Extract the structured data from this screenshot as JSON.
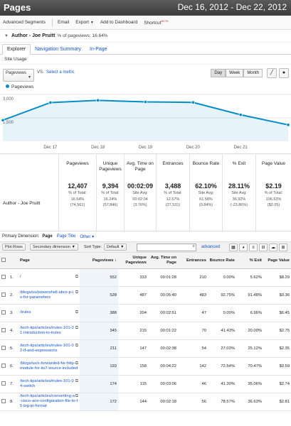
{
  "header": {
    "title": "Pages",
    "date_range": "Dec 16, 2012 - Dec 22, 2012"
  },
  "toolbar": {
    "advanced_segments": "Advanced Segments",
    "email": "Email",
    "export": "Export",
    "add_to_dashboard": "Add to Dashboard",
    "shortcut": "Shortcut",
    "beta": "BETA"
  },
  "segment": {
    "name": "Author - Joe Pruitt",
    "detail": "% of pageviews: 16.64%"
  },
  "tabs": [
    "Explorer",
    "Navigation Summary",
    "In-Page"
  ],
  "subtab": "Site Usage",
  "metric_controls": {
    "metric": "Pageviews",
    "vs": "VS.",
    "select_metric": "Select a metric",
    "day": "Day",
    "week": "Week",
    "month": "Month"
  },
  "chart_data": {
    "type": "line",
    "legend": "Pageviews",
    "y_ticks": [
      "3,000",
      "1,500"
    ],
    "ylim": [
      0,
      3000
    ],
    "categories": [
      "Dec 16",
      "Dec 17",
      "Dec 18",
      "Dec 19",
      "Dec 20",
      "Dec 21",
      "Dec 22"
    ],
    "x_tick_labels": [
      "Dec 17",
      "Dec 18",
      "Dec 19",
      "Dec 20",
      "Dec 21"
    ],
    "series": [
      {
        "name": "Pageviews",
        "values": [
          1350,
          2480,
          2620,
          2520,
          2490,
          1700,
          1050
        ]
      }
    ],
    "color": "#058dc7"
  },
  "summary": {
    "row_label": "Author - Joe Pruitt",
    "columns": [
      {
        "header": "Pageviews",
        "value": "12,407",
        "sub1": "% of Total:",
        "sub2": "16.64%",
        "sub3": "(74,561)"
      },
      {
        "header": "Unique Pageviews",
        "value": "9,394",
        "sub1": "% of Total:",
        "sub2": "16.24%",
        "sub3": "(57,846)"
      },
      {
        "header": "Avg. Time on Page",
        "value": "00:02:09",
        "sub1": "Site Avg:",
        "sub2": "00:02:04",
        "sub3": "(3.76%)"
      },
      {
        "header": "Entrances",
        "value": "3,488",
        "sub1": "% of Total:",
        "sub2": "12.67%",
        "sub3": "(27,531)"
      },
      {
        "header": "Bounce Rate",
        "value": "62.10%",
        "sub1": "Site Avg:",
        "sub2": "61.58%",
        "sub3": "(0.84%)"
      },
      {
        "header": "% Exit",
        "value": "28.11%",
        "sub1": "Site Avg:",
        "sub2": "36.92%",
        "sub3": "(-23.86%)"
      },
      {
        "header": "Page Value",
        "value": "$2.19",
        "sub1": "% of Total:",
        "sub2": "106.63%",
        "sub3": "($2.05)"
      }
    ]
  },
  "primary_dimension": {
    "label": "Primary Dimension:",
    "page": "Page",
    "page_title": "Page Title",
    "other": "Other"
  },
  "controls": {
    "plot_rows": "Plot Rows",
    "secondary_dimension": "Secondary dimension",
    "sort_type": "Sort Type:",
    "default": "Default",
    "advanced": "advanced"
  },
  "table": {
    "headers": [
      "Page",
      "Pageviews",
      "Unique Pageviews",
      "Avg. Time on Page",
      "Entrances",
      "Bounce Rate",
      "% Exit",
      "Page Value"
    ],
    "sort_arrow": "↓",
    "rows": [
      {
        "n": "1.",
        "page": "/",
        "pv": "552",
        "upv": "333",
        "time": "00:01:28",
        "ent": "210",
        "br": "0.00%",
        "exit": "5.62%",
        "val": "$8.29"
      },
      {
        "n": "2.",
        "page": "/blogs/us/powershell-abcs-p-is-for-parameters",
        "pv": "528",
        "upv": "487",
        "time": "00:05:40",
        "ent": "483",
        "br": "92.75%",
        "exit": "91.48%",
        "val": "$0.36"
      },
      {
        "n": "3.",
        "page": "/irules",
        "pv": "388",
        "upv": "204",
        "time": "00:02:51",
        "ent": "47",
        "br": "0.00%",
        "exit": "6.96%",
        "val": "$6.45"
      },
      {
        "n": "4.",
        "page": "/tech-tips/articles/irules-101-01-introduction-to-irules",
        "pv": "345",
        "upv": "215",
        "time": "00:01:22",
        "ent": "70",
        "br": "41.43%",
        "exit": "20.00%",
        "val": "$2.75"
      },
      {
        "n": "5.",
        "page": "/tech-tips/articles/irules-101-02-if-and-expressions",
        "pv": "211",
        "upv": "147",
        "time": "00:02:38",
        "ent": "54",
        "br": "27.03%",
        "exit": "25.12%",
        "val": "$2.35"
      },
      {
        "n": "6.",
        "page": "/blogs/us/x-forwarded-for-http-module-for-iis7-source-included",
        "pv": "193",
        "upv": "158",
        "time": "00:04:22",
        "ent": "142",
        "br": "72.54%",
        "exit": "70.47%",
        "val": "$0.59"
      },
      {
        "n": "7.",
        "page": "/tech-tips/articles/irules-101-04-switch",
        "pv": "174",
        "upv": "115",
        "time": "00:03:06",
        "ent": "46",
        "br": "41.30%",
        "exit": "35.06%",
        "val": "$2.74"
      },
      {
        "n": "8.",
        "page": "/tech-tips/articles/converting-a-cisco-ace-configuration-file-to-f5-big-ip-format",
        "pv": "172",
        "upv": "144",
        "time": "00:02:18",
        "ent": "56",
        "br": "78.57%",
        "exit": "36.63%",
        "val": "$2.81"
      }
    ]
  }
}
